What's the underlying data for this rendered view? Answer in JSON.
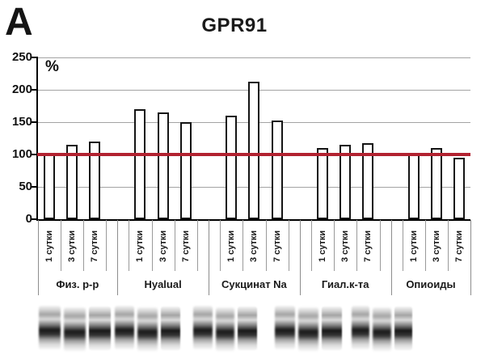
{
  "panel_label": "A",
  "chart_data": {
    "type": "bar",
    "title": "GPR91",
    "ylabel": "%",
    "xlabel": "",
    "ylim": [
      0,
      250
    ],
    "yticks": [
      0,
      50,
      100,
      150,
      200,
      250
    ],
    "grid": true,
    "legend": "none",
    "reference_line": {
      "value": 100,
      "color": "#b22230"
    },
    "bar_style": {
      "fill": "#ffffff",
      "border": "#141414"
    },
    "categories": [
      "Физ. р-р",
      "Hyalual",
      "Сукцинат Na",
      "Гиал.к-та",
      "Опиоиды"
    ],
    "subcategories": [
      "1 сутки",
      "3 сутки",
      "7 сутки"
    ],
    "series": [
      {
        "name": "Физ. р-р",
        "values": [
          100,
          115,
          120
        ]
      },
      {
        "name": "Hyalual",
        "values": [
          170,
          165,
          150
        ]
      },
      {
        "name": "Сукцинат Na",
        "values": [
          160,
          212,
          152
        ]
      },
      {
        "name": "Гиал.к-та",
        "values": [
          110,
          115,
          118
        ]
      },
      {
        "name": "Опиоиды",
        "values": [
          100,
          110,
          95
        ]
      }
    ]
  },
  "gel": {
    "kind": "western-blot-bands",
    "blocks": 5,
    "lanes_per_block": 3
  }
}
